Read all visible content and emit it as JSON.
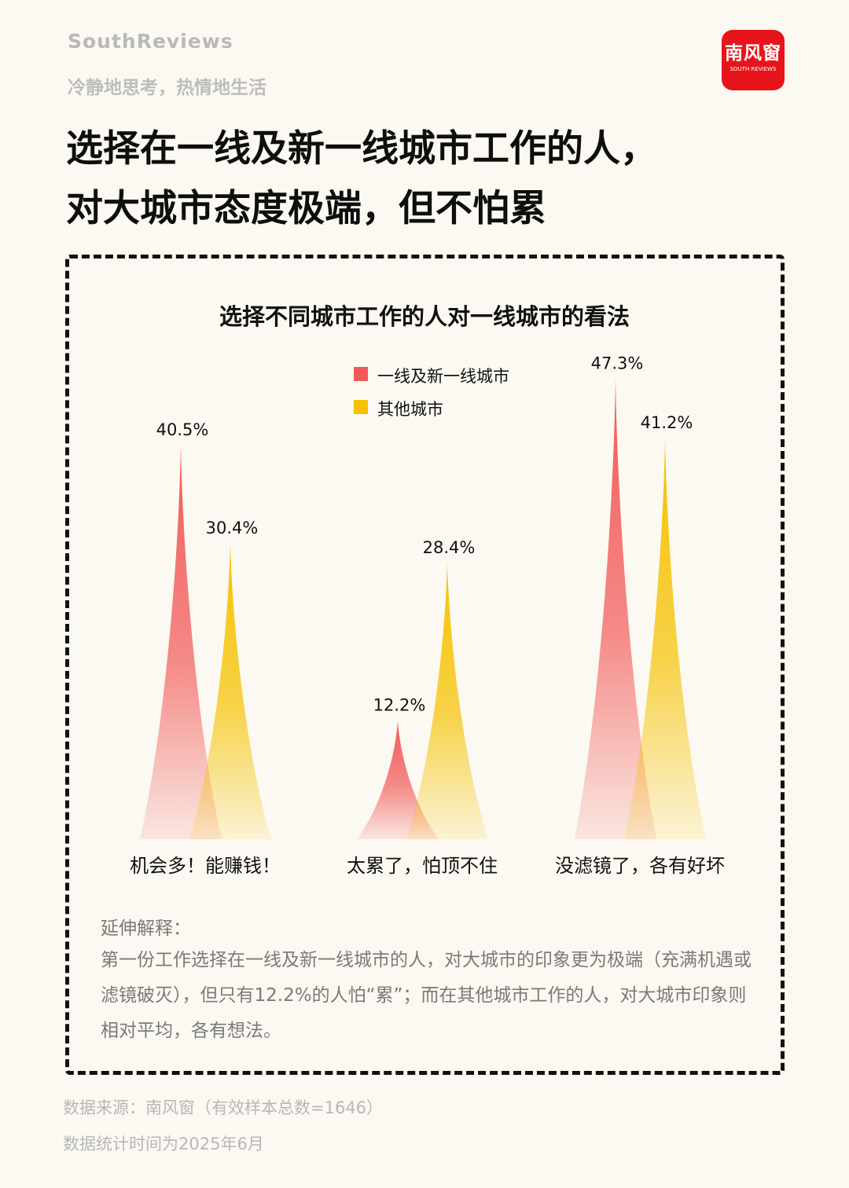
{
  "header": {
    "brand_en": "SouthReviews",
    "slogan": "冷静地思考，热情地生活",
    "logo_cn": "南风窗",
    "logo_en": "SOUTH REVIEWS",
    "title_line1": "选择在一线及新一线城市工作的人，",
    "title_line2": "对大城市态度极端，但不怕累"
  },
  "chart_data": {
    "type": "area",
    "title": "选择不同城市工作的人对一线城市的看法",
    "categories": [
      "机会多！能赚钱！",
      "太累了，怕顶不住",
      "没滤镜了，各有好坏"
    ],
    "series": [
      {
        "name": "一线及新一线城市",
        "values": [
          40.5,
          12.2,
          47.3
        ],
        "labels": [
          "40.5%",
          "12.2%",
          "47.3%"
        ],
        "color": "#F25A5A"
      },
      {
        "name": "其他城市",
        "values": [
          30.4,
          28.4,
          41.2
        ],
        "labels": [
          "30.4%",
          "28.4%",
          "41.2%"
        ],
        "color": "#F6C100"
      }
    ],
    "unit": "%",
    "ylim": [
      0,
      50
    ],
    "legend": "top-center",
    "grid": false
  },
  "notes": {
    "heading": "延伸解释：",
    "body": "第一份工作选择在一线及新一线城市的人，对大城市的印象更为极端（充满机遇或滤镜破灭），但只有12.2%的人怕“累”；而在其他城市工作的人，对大城市印象则相对平均，各有想法。"
  },
  "footer": {
    "source": "数据来源：南风窗（有效样本总数=1646）",
    "stat_time": "数据统计时间为2025年6月"
  }
}
